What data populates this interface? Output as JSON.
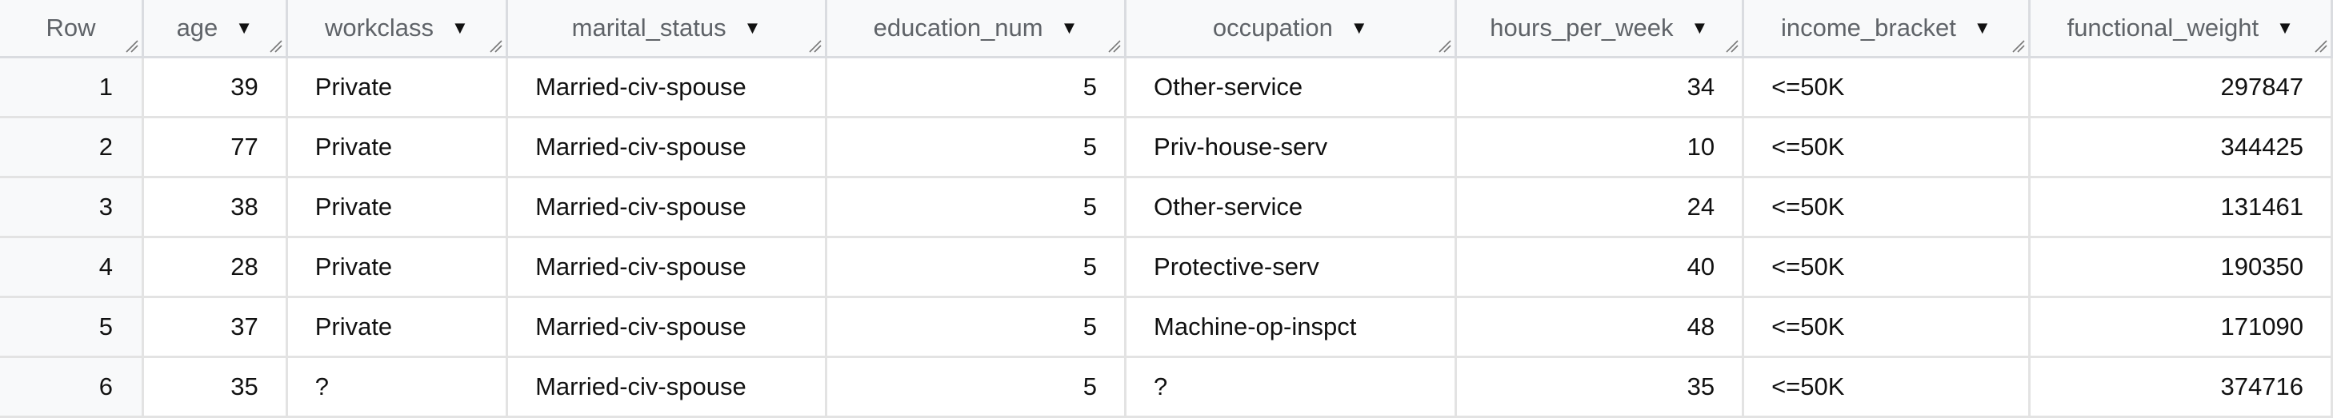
{
  "columns": [
    {
      "label": "Row",
      "sortable": false
    },
    {
      "label": "age",
      "sortable": true
    },
    {
      "label": "workclass",
      "sortable": true
    },
    {
      "label": "marital_status",
      "sortable": true
    },
    {
      "label": "education_num",
      "sortable": true
    },
    {
      "label": "occupation",
      "sortable": true
    },
    {
      "label": "hours_per_week",
      "sortable": true
    },
    {
      "label": "income_bracket",
      "sortable": true
    },
    {
      "label": "functional_weight",
      "sortable": true
    }
  ],
  "sort_icon": "▼",
  "rows": [
    [
      "1",
      "39",
      "Private",
      "Married-civ-spouse",
      "5",
      "Other-service",
      "34",
      "<=50K",
      "297847"
    ],
    [
      "2",
      "77",
      "Private",
      "Married-civ-spouse",
      "5",
      "Priv-house-serv",
      "10",
      "<=50K",
      "344425"
    ],
    [
      "3",
      "38",
      "Private",
      "Married-civ-spouse",
      "5",
      "Other-service",
      "24",
      "<=50K",
      "131461"
    ],
    [
      "4",
      "28",
      "Private",
      "Married-civ-spouse",
      "5",
      "Protective-serv",
      "40",
      "<=50K",
      "190350"
    ],
    [
      "5",
      "37",
      "Private",
      "Married-civ-spouse",
      "5",
      "Machine-op-inspct",
      "48",
      "<=50K",
      "171090"
    ],
    [
      "6",
      "35",
      "?",
      "Married-civ-spouse",
      "5",
      "?",
      "35",
      "<=50K",
      "374716"
    ]
  ]
}
